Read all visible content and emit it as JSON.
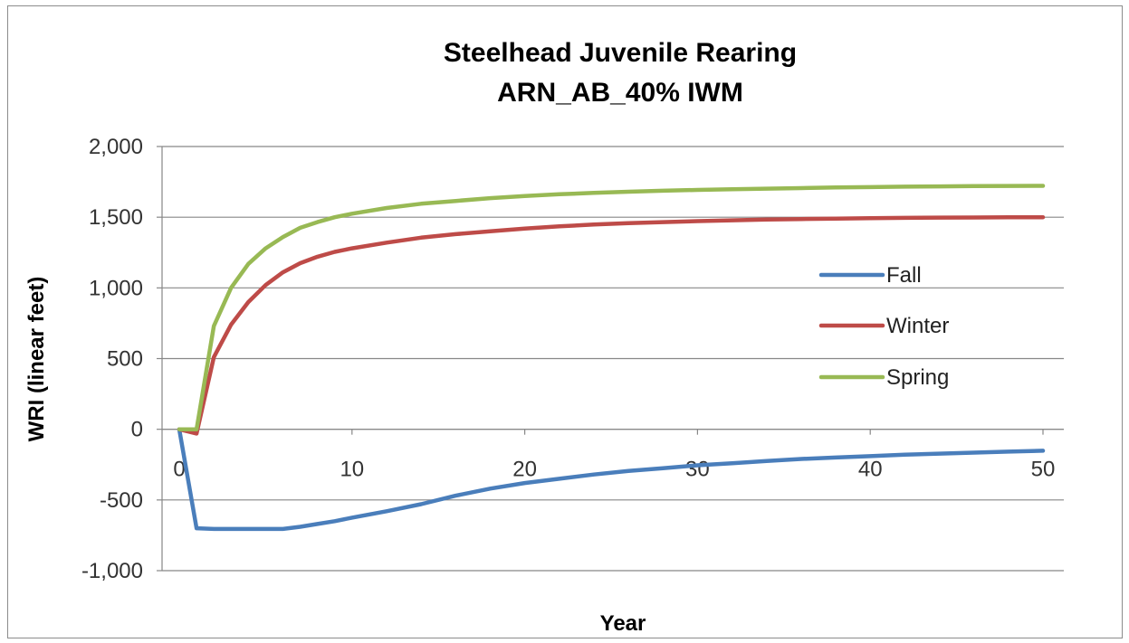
{
  "chart_data": {
    "type": "line",
    "title": "Steelhead Juvenile Rearing",
    "subtitle": "ARN_AB_40% IWM",
    "xlabel": "Year",
    "ylabel": "WRI (linear feet)",
    "xlim": [
      0,
      50
    ],
    "ylim": [
      -1000,
      2000
    ],
    "x_ticks": [
      0,
      10,
      20,
      30,
      40,
      50
    ],
    "y_ticks": [
      2000,
      1500,
      1000,
      500,
      0,
      -500,
      -1000
    ],
    "y_tick_labels": [
      "2,000",
      "1,500",
      "1,000",
      "500",
      "0",
      "-500",
      "-1,000"
    ],
    "x_tick_labels": [
      "0",
      "10",
      "20",
      "30",
      "40",
      "50"
    ],
    "grid": "horizontal",
    "legend_position": "right",
    "series": [
      {
        "name": "Fall",
        "color": "#4a7ebb",
        "x": [
          0,
          1,
          2,
          3,
          4,
          5,
          6,
          7,
          8,
          9,
          10,
          12,
          14,
          16,
          18,
          20,
          22,
          24,
          26,
          28,
          30,
          32,
          34,
          36,
          38,
          40,
          42,
          44,
          46,
          48,
          50
        ],
        "y": [
          0,
          -700,
          -705,
          -705,
          -705,
          -705,
          -705,
          -690,
          -670,
          -650,
          -625,
          -580,
          -530,
          -470,
          -420,
          -380,
          -350,
          -320,
          -295,
          -275,
          -255,
          -240,
          -225,
          -210,
          -200,
          -190,
          -180,
          -172,
          -165,
          -158,
          -152
        ]
      },
      {
        "name": "Winter",
        "color": "#be4b48",
        "x": [
          0,
          1,
          2,
          3,
          4,
          5,
          6,
          7,
          8,
          9,
          10,
          12,
          14,
          16,
          18,
          20,
          22,
          24,
          26,
          28,
          30,
          32,
          34,
          36,
          38,
          40,
          42,
          44,
          46,
          48,
          50
        ],
        "y": [
          0,
          -30,
          510,
          740,
          900,
          1020,
          1110,
          1175,
          1220,
          1255,
          1280,
          1320,
          1355,
          1380,
          1400,
          1420,
          1435,
          1448,
          1458,
          1465,
          1472,
          1478,
          1483,
          1487,
          1490,
          1493,
          1495,
          1497,
          1498,
          1499,
          1500
        ]
      },
      {
        "name": "Spring",
        "color": "#98b954",
        "x": [
          0,
          1,
          2,
          3,
          4,
          5,
          6,
          7,
          8,
          9,
          10,
          12,
          14,
          16,
          18,
          20,
          22,
          24,
          26,
          28,
          30,
          32,
          34,
          36,
          38,
          40,
          42,
          44,
          46,
          48,
          50
        ],
        "y": [
          0,
          0,
          730,
          1000,
          1170,
          1280,
          1360,
          1425,
          1465,
          1500,
          1525,
          1565,
          1595,
          1615,
          1635,
          1650,
          1662,
          1672,
          1680,
          1687,
          1693,
          1698,
          1702,
          1706,
          1710,
          1713,
          1716,
          1718,
          1720,
          1721,
          1722
        ]
      }
    ]
  }
}
